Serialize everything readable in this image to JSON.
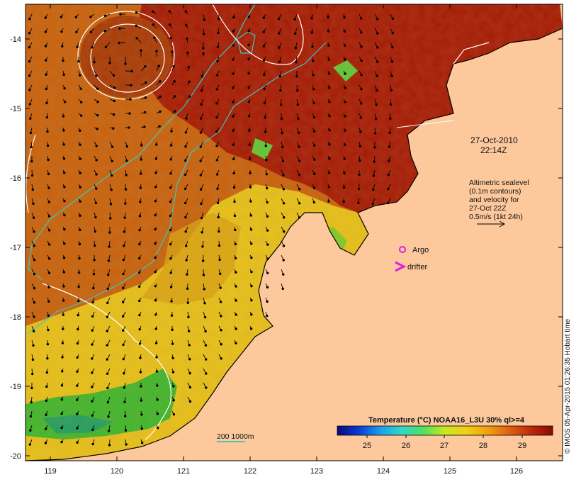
{
  "map": {
    "x_ticks": [
      "119",
      "120",
      "121",
      "122",
      "123",
      "124",
      "125",
      "126"
    ],
    "y_ticks": [
      "-14",
      "-15",
      "-16",
      "-17",
      "-18",
      "-19",
      "-20"
    ]
  },
  "annotations": {
    "datetime_line1": "27-Oct-2010",
    "datetime_line2": "22:14Z",
    "altimetry_lines": [
      "Altimetric sealevel",
      "(0.1m contours)",
      "and velocity for",
      "27-Oct 22Z",
      "0.5m/s (1kt 24h)"
    ],
    "argo_label": "Argo",
    "drifter_label": "drifter",
    "depth_legend": "200  1000m"
  },
  "colorbar": {
    "title": "Temperature (°C) NOAA16_L3U 30% ql>=4",
    "ticks": [
      "25",
      "26",
      "27",
      "28",
      "29"
    ]
  },
  "credit": "© IMOS 05-Apr-2015 01:26:35 Hobart time",
  "colors": {
    "land": "#fcc89c",
    "warm": "#a51a05",
    "mid": "#c8620f",
    "yellow": "#e8c21a",
    "green": "#3fb82e",
    "argo": "#e020e0",
    "isobath": "#3cc8c0"
  }
}
